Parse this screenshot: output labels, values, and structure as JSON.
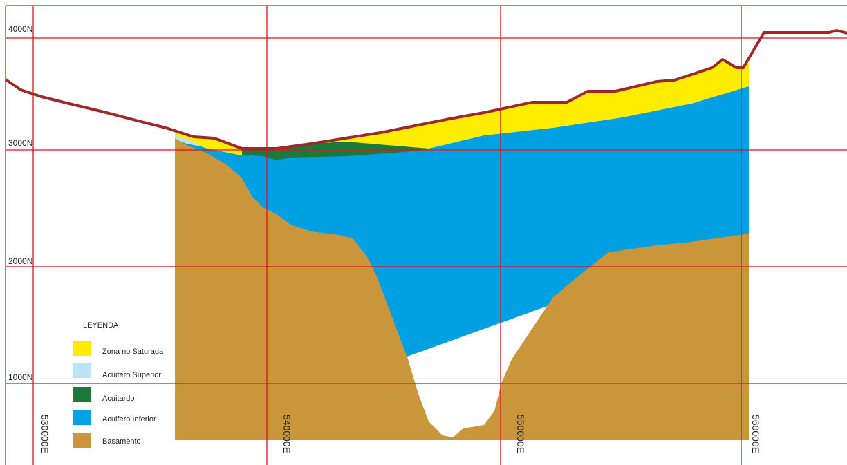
{
  "grid": {
    "northing_labels": [
      "4000N",
      "3000N",
      "2000N",
      "1000N"
    ],
    "easting_labels": [
      "530000E",
      "540000E",
      "550000E",
      "560000E"
    ]
  },
  "legend": {
    "title": "LEYENDA",
    "items": [
      "Zona no Saturada",
      "Acuifero Superior",
      "Acuitardo",
      "Acuifero Inferior",
      "Basamento"
    ]
  }
}
